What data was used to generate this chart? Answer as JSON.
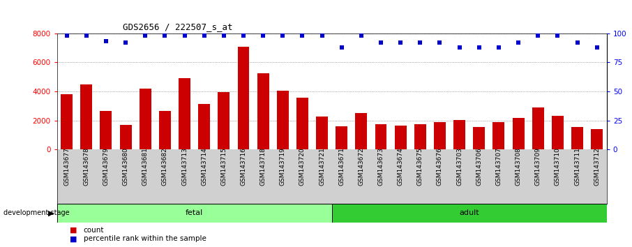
{
  "title": "GDS2656 / 222507_s_at",
  "categories": [
    "GSM143677",
    "GSM143678",
    "GSM143679",
    "GSM143680",
    "GSM143681",
    "GSM143682",
    "GSM143713",
    "GSM143714",
    "GSM143715",
    "GSM143716",
    "GSM143718",
    "GSM143719",
    "GSM143720",
    "GSM143721",
    "GSM143671",
    "GSM143672",
    "GSM143673",
    "GSM143674",
    "GSM143675",
    "GSM143676",
    "GSM143703",
    "GSM143706",
    "GSM143707",
    "GSM143708",
    "GSM143709",
    "GSM143710",
    "GSM143711",
    "GSM143712"
  ],
  "counts": [
    3800,
    4500,
    2650,
    1700,
    4200,
    2650,
    4900,
    3150,
    3950,
    7100,
    5250,
    4050,
    3550,
    2250,
    1600,
    2500,
    1750,
    1650,
    1750,
    1900,
    2050,
    1550,
    1900,
    2150,
    2900,
    2300,
    1550,
    1400
  ],
  "percentile_ranks": [
    98,
    98,
    93,
    92,
    98,
    98,
    98,
    98,
    98,
    98,
    98,
    98,
    98,
    98,
    88,
    98,
    92,
    92,
    92,
    92,
    88,
    88,
    88,
    92,
    98,
    98,
    92,
    88
  ],
  "fetal_count": 14,
  "adult_count": 14,
  "bar_color": "#cc0000",
  "dot_color": "#0000cc",
  "fetal_color": "#99ff99",
  "adult_color": "#33cc33",
  "tick_area_color": "#d0d0d0",
  "ylim_left": [
    0,
    8000
  ],
  "ylim_right": [
    0,
    100
  ],
  "yticks_left": [
    0,
    2000,
    4000,
    6000,
    8000
  ],
  "yticks_right": [
    0,
    25,
    50,
    75,
    100
  ]
}
